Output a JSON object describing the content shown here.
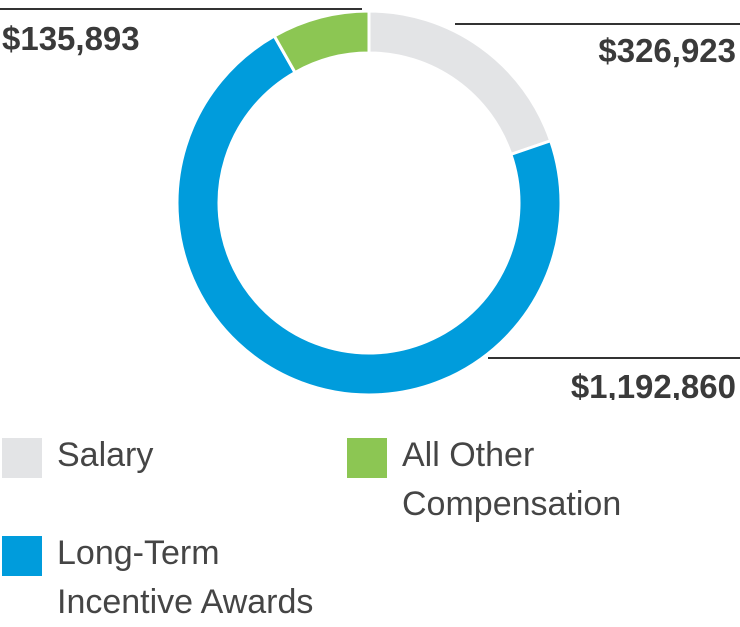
{
  "chart_data": {
    "type": "pie",
    "variant": "donut",
    "slices": [
      {
        "key": "salary",
        "name": "Salary",
        "value": 326923,
        "label": "$326,923",
        "color": "#e3e4e6"
      },
      {
        "key": "ltia",
        "name": "Long-Term Incentive Awards",
        "value": 1192860,
        "label": "$1,192,860",
        "color": "#009cdc"
      },
      {
        "key": "other",
        "name": "All Other Compensation",
        "value": 135893,
        "label": "$135,893",
        "color": "#8cc653"
      }
    ],
    "legend": {
      "position": "bottom",
      "entries": [
        {
          "key": "salary",
          "lines": [
            "Salary"
          ],
          "color": "#e3e4e6"
        },
        {
          "key": "other",
          "lines": [
            "All Other",
            "Compensation"
          ],
          "color": "#8cc653"
        },
        {
          "key": "ltia",
          "lines": [
            "Long-Term",
            "Incentive Awards"
          ],
          "color": "#009cdc"
        }
      ]
    },
    "leader_line_color": "#333333"
  }
}
